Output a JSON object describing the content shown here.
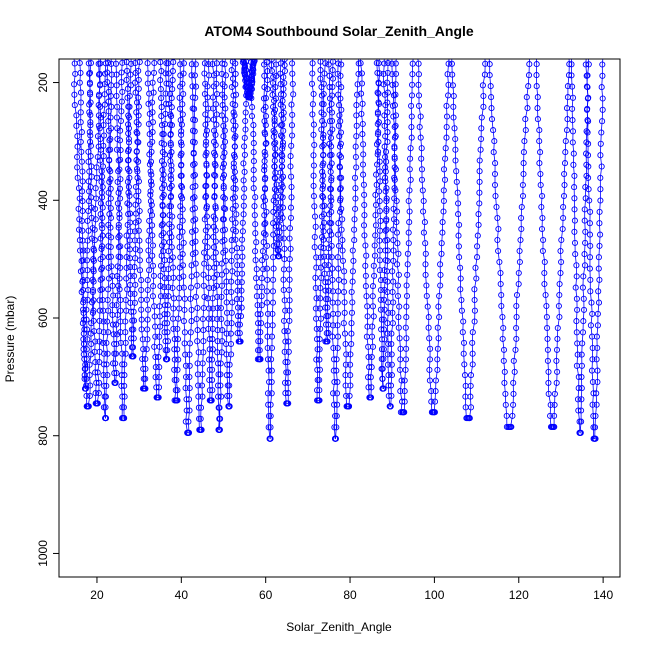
{
  "chart_data": {
    "type": "line",
    "title": "ATOM4 Southbound Solar_Zenith_Angle",
    "xlabel": "Solar_Zenith_Angle",
    "ylabel": "Pressure (mbar)",
    "xlim": [
      11,
      144
    ],
    "ylim": [
      1040,
      160
    ],
    "y_inverted": true,
    "x_ticks": [
      20,
      40,
      60,
      80,
      100,
      120,
      140
    ],
    "y_ticks": [
      200,
      400,
      600,
      800,
      1000
    ],
    "grid": false,
    "series_color": "#0000ff",
    "marker": "open-circle",
    "profiles": [
      {
        "x0": 14.5,
        "x1": 21.0,
        "p_bottom": 750
      },
      {
        "x0": 16.0,
        "x1": 18.5,
        "p_bottom": 720
      },
      {
        "x0": 18.0,
        "x1": 22.0,
        "p_bottom": 745
      },
      {
        "x0": 20.5,
        "x1": 23.5,
        "p_bottom": 770
      },
      {
        "x0": 22.5,
        "x1": 26.0,
        "p_bottom": 710
      },
      {
        "x0": 24.5,
        "x1": 28.0,
        "p_bottom": 770
      },
      {
        "x0": 27.0,
        "x1": 30.0,
        "p_bottom": 665
      },
      {
        "x0": 29.0,
        "x1": 33.5,
        "p_bottom": 720
      },
      {
        "x0": 32.0,
        "x1": 36.5,
        "p_bottom": 735
      },
      {
        "x0": 35.0,
        "x1": 38.0,
        "p_bottom": 670
      },
      {
        "x0": 37.0,
        "x1": 40.5,
        "p_bottom": 740
      },
      {
        "x0": 39.5,
        "x1": 43.5,
        "p_bottom": 795
      },
      {
        "x0": 42.5,
        "x1": 46.5,
        "p_bottom": 790
      },
      {
        "x0": 45.5,
        "x1": 48.5,
        "p_bottom": 740
      },
      {
        "x0": 47.5,
        "x1": 50.5,
        "p_bottom": 790
      },
      {
        "x0": 49.5,
        "x1": 53.0,
        "p_bottom": 750
      },
      {
        "x0": 52.0,
        "x1": 55.5,
        "p_bottom": 640
      },
      {
        "x0": 54.5,
        "x1": 57.5,
        "p_bottom": 225
      },
      {
        "x0": 56.5,
        "x1": 60.5,
        "p_bottom": 670
      },
      {
        "x0": 59.5,
        "x1": 62.5,
        "p_bottom": 805
      },
      {
        "x0": 61.5,
        "x1": 64.5,
        "p_bottom": 495
      },
      {
        "x0": 63.5,
        "x1": 66.5,
        "p_bottom": 745
      },
      {
        "x0": 71.0,
        "x1": 74.0,
        "p_bottom": 740
      },
      {
        "x0": 73.0,
        "x1": 76.0,
        "p_bottom": 640
      },
      {
        "x0": 75.0,
        "x1": 78.0,
        "p_bottom": 805
      },
      {
        "x0": 77.0,
        "x1": 82.0,
        "p_bottom": 750
      },
      {
        "x0": 82.5,
        "x1": 87.0,
        "p_bottom": 735
      },
      {
        "x0": 86.5,
        "x1": 89.0,
        "p_bottom": 720
      },
      {
        "x0": 88.0,
        "x1": 91.0,
        "p_bottom": 750
      },
      {
        "x0": 90.0,
        "x1": 95.0,
        "p_bottom": 760
      },
      {
        "x0": 96.0,
        "x1": 103.5,
        "p_bottom": 760
      },
      {
        "x0": 104.0,
        "x1": 112.0,
        "p_bottom": 770
      },
      {
        "x0": 113.0,
        "x1": 122.5,
        "p_bottom": 785
      },
      {
        "x0": 124.0,
        "x1": 132.0,
        "p_bottom": 785
      },
      {
        "x0": 132.5,
        "x1": 136.5,
        "p_bottom": 795
      },
      {
        "x0": 136.0,
        "x1": 140.0,
        "p_bottom": 805
      }
    ]
  }
}
